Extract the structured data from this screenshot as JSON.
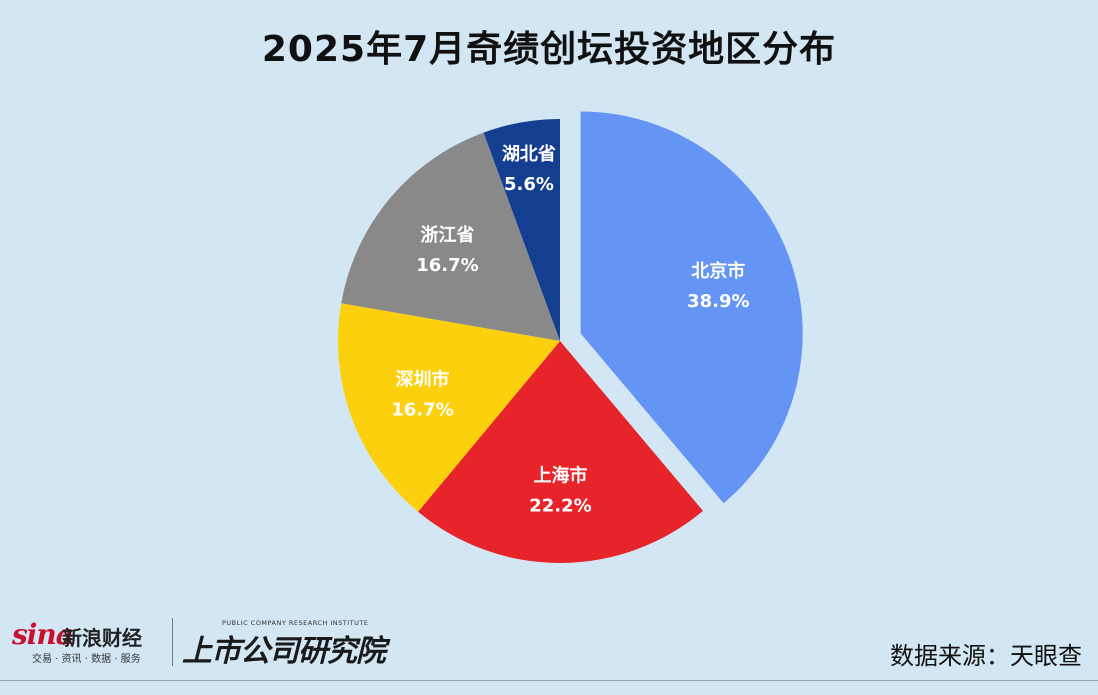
{
  "chart_data": {
    "type": "pie",
    "title": "2025年7月奇绩创坛投资地区分布",
    "slices": [
      {
        "label": "北京市",
        "value": 38.9,
        "value_label": "38.9%",
        "color": "#6495f5",
        "exploded": true
      },
      {
        "label": "上海市",
        "value": 22.2,
        "value_label": "22.2%",
        "color": "#e8242b",
        "exploded": false
      },
      {
        "label": "深圳市",
        "value": 16.7,
        "value_label": "16.7%",
        "color": "#fdd00d",
        "exploded": false
      },
      {
        "label": "浙江省",
        "value": 16.7,
        "value_label": "16.7%",
        "color": "#898989",
        "exploded": false
      },
      {
        "label": "湖北省",
        "value": 5.6,
        "value_label": "5.6%",
        "color": "#143f91",
        "exploded": false
      }
    ],
    "start": "12 o'clock",
    "direction": "clockwise",
    "legend": "none",
    "labels": "inside"
  },
  "source_text": "数据来源：天眼查",
  "logos": {
    "sina": {
      "word": "sina",
      "cn": "新浪财经",
      "sub": "交易 · 资讯 · 数据 · 服务"
    },
    "institute": {
      "cn": "上市公司研究院",
      "en": "PUBLIC COMPANY RESEARCH INSTITUTE"
    }
  },
  "colors": {
    "background": "#d2e6f4"
  }
}
